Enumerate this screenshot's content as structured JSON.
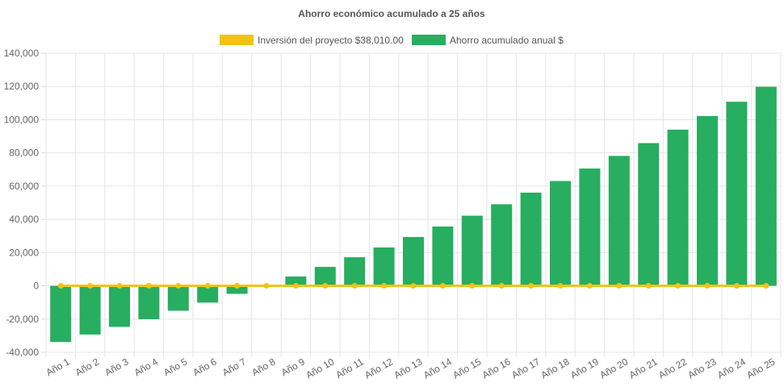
{
  "chart_data": {
    "type": "bar",
    "title": "Ahorro económico acumulado a 25 años",
    "categories": [
      "Año 1",
      "Año 2",
      "Año 3",
      "Año 4",
      "Año 5",
      "Año 6",
      "Año 7",
      "Año 8",
      "Año 9",
      "Año 10",
      "Año 11",
      "Año 12",
      "Año 13",
      "Año 14",
      "Año 15",
      "Año 16",
      "Año 17",
      "Año 18",
      "Año 19",
      "Año 20",
      "Año 21",
      "Año 22",
      "Año 23",
      "Año 24",
      "Año 25"
    ],
    "series": [
      {
        "name": "Inversión del proyecto $38,010.00",
        "type": "line",
        "color": "#f1c40f",
        "values": [
          0,
          0,
          0,
          0,
          0,
          0,
          0,
          0,
          0,
          0,
          0,
          0,
          0,
          0,
          0,
          0,
          0,
          0,
          0,
          0,
          0,
          0,
          0,
          0,
          0
        ]
      },
      {
        "name": "Ahorro acumulado anual $",
        "type": "bar",
        "color": "#27ae60",
        "values": [
          -33800,
          -29300,
          -24700,
          -20100,
          -15000,
          -10100,
          -4800,
          0,
          5600,
          11400,
          17200,
          23100,
          29400,
          35700,
          42200,
          49100,
          56100,
          63100,
          70600,
          78200,
          85900,
          94000,
          102200,
          110800,
          119800
        ]
      }
    ],
    "ylim": [
      -40000,
      140000
    ],
    "yticks": [
      "140,000",
      "120,000",
      "100,000",
      "80,000",
      "60,000",
      "40,000",
      "20,000",
      "0",
      "-20,000",
      "-40,000"
    ],
    "ytick_values": [
      140000,
      120000,
      100000,
      80000,
      60000,
      40000,
      20000,
      0,
      -20000,
      -40000
    ],
    "grid": true,
    "legend_position": "top"
  }
}
